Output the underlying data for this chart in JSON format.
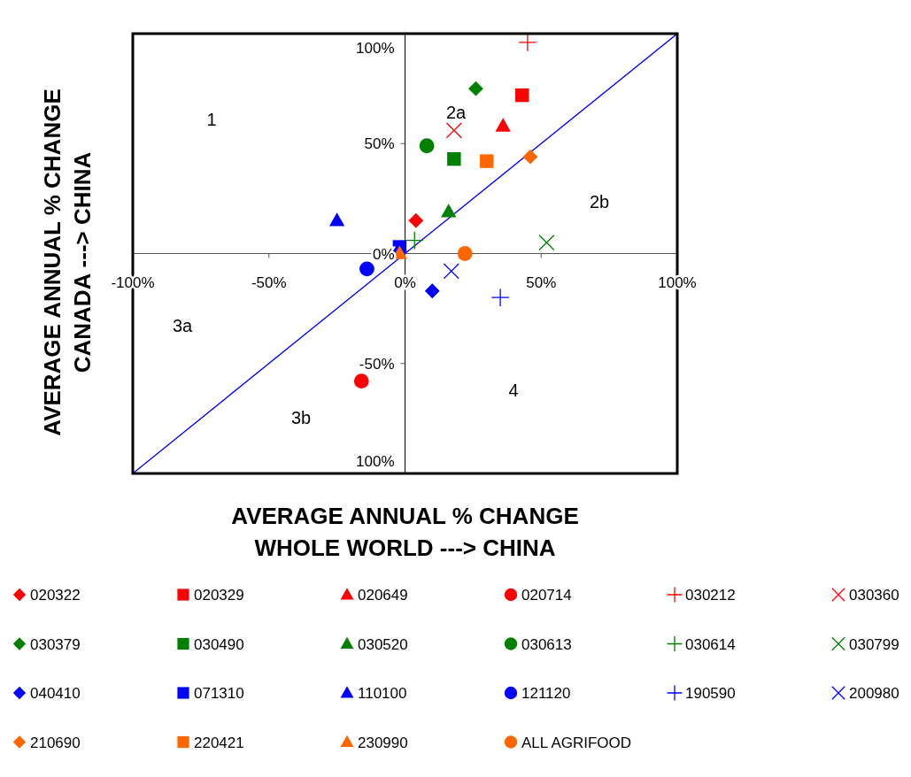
{
  "chart_data": {
    "type": "scatter",
    "xlabel": "AVERAGE ANNUAL % CHANGE\nWHOLE WORLD ---> CHINA",
    "ylabel": "AVERAGE ANNUAL % CHANGE\nCANADA ---> CHINA",
    "xlim": [
      -100,
      100
    ],
    "ylim": [
      -100,
      100
    ],
    "xticks": [
      {
        "value": -100,
        "label": "-100%"
      },
      {
        "value": -50,
        "label": "-50%"
      },
      {
        "value": 0,
        "label": "0%"
      },
      {
        "value": 50,
        "label": "50%"
      },
      {
        "value": 100,
        "label": "100%"
      }
    ],
    "yticks": [
      {
        "value": -100,
        "label": "100%"
      },
      {
        "value": -50,
        "label": "-50%"
      },
      {
        "value": 0,
        "label": "0%"
      },
      {
        "value": 50,
        "label": "50%"
      },
      {
        "value": 100,
        "label": "100%"
      }
    ],
    "grid": false,
    "legend": "bottom",
    "annotations": [
      "1",
      "2a",
      "2b",
      "3a",
      "3b",
      "4"
    ],
    "series": [
      {
        "type": "line",
        "color": "#0000ff",
        "marker": "none",
        "line_style": "solid",
        "x": [
          -100,
          100
        ],
        "values": [
          -100,
          100
        ]
      },
      {
        "name": "020322",
        "color": "#ff0000",
        "marker": "diamond",
        "x": [
          4
        ],
        "values": [
          15
        ]
      },
      {
        "name": "020329",
        "color": "#ff0000",
        "marker": "square",
        "x": [
          43
        ],
        "values": [
          72
        ]
      },
      {
        "name": "020649",
        "color": "#ff0000",
        "marker": "triangle",
        "x": [
          36
        ],
        "values": [
          58
        ]
      },
      {
        "name": "020714",
        "color": "#ff0000",
        "marker": "circle",
        "x": [
          -16
        ],
        "values": [
          -58
        ]
      },
      {
        "name": "030212",
        "color": "#ff0000",
        "marker": "plus",
        "x": [
          45
        ],
        "values": [
          96
        ]
      },
      {
        "name": "030360",
        "color": "#ff0000",
        "marker": "cross",
        "x": [
          18
        ],
        "values": [
          56
        ]
      },
      {
        "name": "030379",
        "color": "#008000",
        "marker": "diamond",
        "x": [
          26
        ],
        "values": [
          75
        ]
      },
      {
        "name": "030490",
        "color": "#008000",
        "marker": "square",
        "x": [
          18
        ],
        "values": [
          43
        ]
      },
      {
        "name": "030520",
        "color": "#008000",
        "marker": "triangle",
        "x": [
          16
        ],
        "values": [
          19
        ]
      },
      {
        "name": "030613",
        "color": "#008000",
        "marker": "circle",
        "x": [
          8
        ],
        "values": [
          49
        ]
      },
      {
        "name": "030614",
        "color": "#008000",
        "marker": "plus",
        "x": [
          3.5
        ],
        "values": [
          6
        ]
      },
      {
        "name": "030799",
        "color": "#008000",
        "marker": "cross",
        "x": [
          52
        ],
        "values": [
          5
        ]
      },
      {
        "name": "040410",
        "color": "#0000ff",
        "marker": "diamond",
        "x": [
          10
        ],
        "values": [
          -17
        ]
      },
      {
        "name": "071310",
        "color": "#0000ff",
        "marker": "square",
        "x": [
          -2
        ],
        "values": [
          3
        ]
      },
      {
        "name": "110100",
        "color": "#0000ff",
        "marker": "triangle",
        "x": [
          -25
        ],
        "values": [
          15
        ]
      },
      {
        "name": "121120",
        "color": "#0000ff",
        "marker": "circle",
        "x": [
          -14
        ],
        "values": [
          -7
        ]
      },
      {
        "name": "190590",
        "color": "#0000ff",
        "marker": "plus",
        "x": [
          35
        ],
        "values": [
          -20
        ]
      },
      {
        "name": "200980",
        "color": "#0000ff",
        "marker": "cross",
        "x": [
          17
        ],
        "values": [
          -8
        ]
      },
      {
        "name": "210690",
        "color": "#ff6600",
        "marker": "diamond",
        "x": [
          46
        ],
        "values": [
          44
        ]
      },
      {
        "name": "220421",
        "color": "#ff6600",
        "marker": "square",
        "x": [
          30
        ],
        "values": [
          42
        ]
      },
      {
        "name": "230990",
        "color": "#ff6600",
        "marker": "triangle",
        "x": [
          -2
        ],
        "values": [
          0
        ]
      },
      {
        "name": "ALL AGRIFOOD",
        "color": "#ff6600",
        "marker": "circle",
        "x": [
          22
        ],
        "values": [
          0
        ]
      }
    ]
  }
}
